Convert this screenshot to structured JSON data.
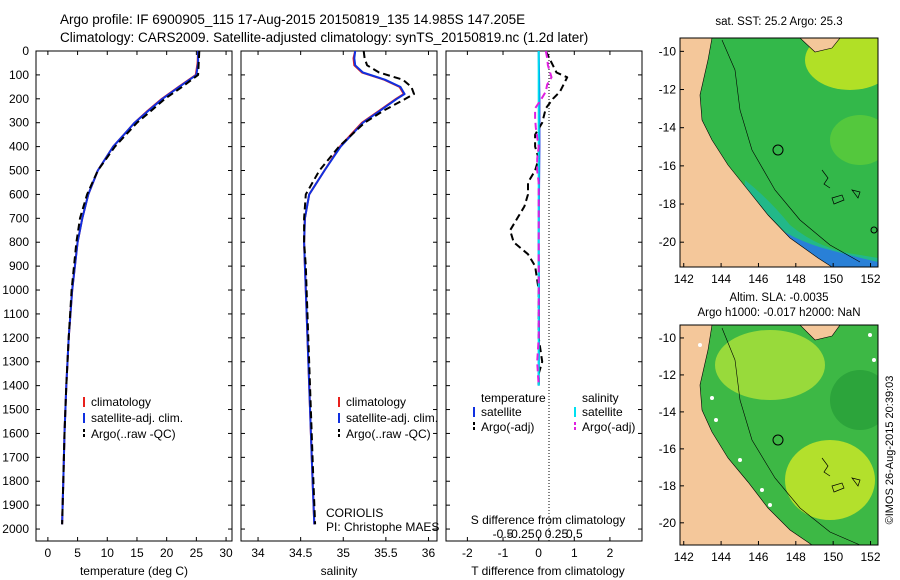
{
  "header": {
    "title_line1": "Argo profile: IF 6900905_115 17-Aug-2015 20150819_135 14.985S 147.205E",
    "title_line2": "Climatology: CARS2009. Satellite-adjusted climatology: synTS_20150819.nc (1.2d later)"
  },
  "depth_ticks": [
    0,
    100,
    200,
    300,
    400,
    500,
    600,
    700,
    800,
    900,
    1000,
    1100,
    1200,
    1300,
    1400,
    1500,
    1600,
    1700,
    1800,
    1900,
    2000
  ],
  "colors": {
    "climatology": "#e8201c",
    "satellite": "#1030e0",
    "argo": "#000000",
    "sat_salinity_diff": "#00e0f0",
    "argo_salinity_diff": "#e020e0",
    "land": "#f4c79a"
  },
  "chart_data": [
    {
      "type": "line",
      "name": "temperature-profile",
      "xlabel": "temperature (deg C)",
      "xlim": [
        -2,
        31
      ],
      "xticks": [
        0,
        5,
        10,
        15,
        20,
        25,
        30
      ],
      "ylim": [
        2050,
        0
      ],
      "legend": {
        "placement": "lower-center",
        "entries": [
          "climatology",
          "satellite-adj. clim.",
          "Argo(..raw -QC)"
        ]
      },
      "series": [
        {
          "name": "climatology",
          "color": "#e8201c",
          "depth": [
            0,
            50,
            100,
            150,
            200,
            250,
            300,
            400,
            500,
            600,
            700,
            800,
            1000,
            1200,
            1400,
            1600,
            1800,
            1980
          ],
          "values": [
            25.3,
            25.2,
            24.9,
            22.0,
            19.2,
            16.8,
            14.6,
            11.0,
            8.4,
            6.8,
            5.8,
            5.0,
            4.1,
            3.5,
            3.1,
            2.8,
            2.6,
            2.4
          ]
        },
        {
          "name": "satellite-adj. clim.",
          "color": "#1030e0",
          "depth": [
            0,
            50,
            100,
            150,
            200,
            250,
            300,
            400,
            500,
            600,
            700,
            800,
            1000,
            1200,
            1400,
            1600,
            1800,
            1980
          ],
          "values": [
            25.3,
            25.3,
            25.0,
            22.1,
            19.3,
            16.9,
            14.6,
            11.0,
            8.4,
            6.8,
            5.8,
            5.0,
            4.1,
            3.5,
            3.1,
            2.8,
            2.6,
            2.4
          ]
        },
        {
          "name": "Argo(..raw -QC)",
          "color": "#000000",
          "dash": true,
          "depth": [
            0,
            50,
            100,
            150,
            200,
            250,
            300,
            400,
            500,
            600,
            700,
            800,
            1000,
            1200,
            1400,
            1600,
            1800,
            1980
          ],
          "values": [
            25.5,
            25.4,
            25.3,
            22.6,
            19.7,
            17.4,
            15.0,
            11.3,
            8.4,
            6.6,
            5.4,
            4.8,
            4.0,
            3.5,
            3.1,
            2.8,
            2.6,
            2.4
          ]
        }
      ]
    },
    {
      "type": "line",
      "name": "salinity-profile",
      "xlabel": "salinity",
      "xlim": [
        33.8,
        36.1
      ],
      "xticks": [
        34,
        34.5,
        35,
        35.5,
        36
      ],
      "ylim": [
        2050,
        0
      ],
      "legend": {
        "placement": "lower-center",
        "entries": [
          "climatology",
          "satellite-adj. clim.",
          "Argo(..raw -QC)"
        ]
      },
      "annotation": [
        "CORIOLIS",
        "PI: Christophe MAES"
      ],
      "series": [
        {
          "name": "climatology",
          "color": "#e8201c",
          "depth": [
            0,
            30,
            60,
            90,
            120,
            150,
            180,
            200,
            250,
            300,
            400,
            500,
            600,
            700,
            800,
            900,
            1000,
            1200,
            1400,
            1600,
            1800,
            1980
          ],
          "values": [
            35.14,
            35.12,
            35.13,
            35.22,
            35.48,
            35.66,
            35.71,
            35.62,
            35.42,
            35.22,
            34.96,
            34.78,
            34.6,
            34.55,
            34.54,
            34.55,
            34.56,
            34.58,
            34.6,
            34.62,
            34.64,
            34.66
          ]
        },
        {
          "name": "satellite-adj. clim.",
          "color": "#1030e0",
          "depth": [
            0,
            30,
            60,
            90,
            120,
            150,
            180,
            200,
            250,
            300,
            400,
            500,
            600,
            700,
            800,
            900,
            1000,
            1200,
            1400,
            1600,
            1800,
            1980
          ],
          "values": [
            35.14,
            35.13,
            35.14,
            35.23,
            35.49,
            35.67,
            35.72,
            35.63,
            35.43,
            35.23,
            34.97,
            34.78,
            34.6,
            34.55,
            34.54,
            34.55,
            34.56,
            34.58,
            34.6,
            34.62,
            34.64,
            34.66
          ]
        },
        {
          "name": "Argo(..raw -QC)",
          "color": "#000000",
          "dash": true,
          "depth": [
            0,
            30,
            60,
            90,
            120,
            150,
            180,
            200,
            250,
            300,
            400,
            500,
            600,
            700,
            800,
            900,
            1000,
            1200,
            1400,
            1600,
            1800,
            1980
          ],
          "values": [
            35.24,
            35.25,
            35.28,
            35.42,
            35.7,
            35.8,
            35.83,
            35.73,
            35.47,
            35.25,
            34.95,
            34.72,
            34.56,
            34.54,
            34.54,
            34.56,
            34.57,
            34.59,
            34.61,
            34.63,
            34.65,
            34.67
          ]
        }
      ]
    },
    {
      "type": "line",
      "name": "difference-profile",
      "xlabel": "T difference from climatology",
      "top_label": "S difference from climatology",
      "xlim": [
        -2.6,
        2.9
      ],
      "xticks": [
        -2,
        -1,
        0,
        1,
        2
      ],
      "xticklabels": [
        "-2",
        "-1",
        "0",
        "1",
        "2"
      ],
      "top_ticks": [
        -0.5,
        -0.25,
        0,
        0.25,
        0.5
      ],
      "top_ticklabels": [
        "-0.5",
        "-0.25",
        "0",
        "0.25",
        "0.5"
      ],
      "ylim": [
        2050,
        0
      ],
      "legend": {
        "placement": "lower-center",
        "headers": [
          "temperature",
          "salinity"
        ],
        "entries": [
          "satellite",
          "Argo(-adj)",
          "satellite",
          "Argo(-adj)"
        ]
      },
      "series": [
        {
          "name": "temperature satellite",
          "color": "#1030e0",
          "depth": [
            0,
            200,
            400,
            600,
            800,
            1000,
            1200,
            1400
          ],
          "values": [
            0.0,
            0.02,
            0.02,
            0.01,
            0.0,
            0.01,
            0.01,
            0.0
          ]
        },
        {
          "name": "temperature Argo(-adj)",
          "color": "#000000",
          "dash": true,
          "depth": [
            0,
            30,
            60,
            90,
            110,
            140,
            170,
            200,
            240,
            300,
            350,
            400,
            450,
            500,
            550,
            600,
            650,
            700,
            750,
            800,
            850,
            900,
            1000,
            1100,
            1200,
            1300,
            1350,
            1400
          ],
          "values": [
            0.2,
            0.3,
            0.4,
            0.5,
            0.8,
            0.7,
            0.6,
            0.4,
            0.2,
            0.1,
            -0.1,
            -0.1,
            0.0,
            -0.1,
            -0.3,
            -0.3,
            -0.4,
            -0.6,
            -0.8,
            -0.7,
            -0.3,
            -0.1,
            0.0,
            0.0,
            0.0,
            0.1,
            0.0,
            0.0
          ]
        },
        {
          "name": "salinity satellite",
          "color": "#00e0f0",
          "depth": [
            0,
            200,
            400,
            600,
            800,
            1000,
            1200,
            1400
          ],
          "values": [
            0.0,
            0.0,
            0.0,
            0.0,
            0.0,
            0.0,
            0.0,
            0.0
          ]
        },
        {
          "name": "salinity Argo(-adj)",
          "color": "#e020e0",
          "dash": true,
          "depth": [
            0,
            30,
            60,
            90,
            110,
            140,
            170,
            200,
            240,
            280,
            320,
            360,
            400,
            450,
            500,
            550,
            600,
            700,
            800,
            900,
            1000,
            1200,
            1300,
            1350,
            1400
          ],
          "values": [
            0.1,
            0.12,
            0.13,
            0.16,
            0.18,
            0.12,
            0.1,
            0.04,
            -0.05,
            -0.05,
            -0.04,
            -0.02,
            0.0,
            -0.02,
            -0.02,
            0.0,
            0.0,
            0.0,
            0.0,
            0.0,
            0.0,
            0.0,
            -0.02,
            -0.01,
            0.0
          ]
        }
      ]
    }
  ],
  "maps": [
    {
      "name": "sst-map",
      "title": "sat. SST: 25.2  Argo: 25.3",
      "lon_ticks": [
        142,
        144,
        146,
        148,
        150,
        152
      ],
      "lat_ticks": [
        -10,
        -12,
        -14,
        -16,
        -18,
        -20
      ]
    },
    {
      "name": "sla-map",
      "title_line1": "Altim. SLA: -0.0035",
      "title_line2": "Argo h1000: -0.017  h2000: NaN",
      "lon_ticks": [
        142,
        144,
        146,
        148,
        150,
        152
      ],
      "lat_ticks": [
        -10,
        -12,
        -14,
        -16,
        -18,
        -20
      ]
    }
  ],
  "side_stamp": "©IMOS 26-Aug-2015 20:39:03"
}
